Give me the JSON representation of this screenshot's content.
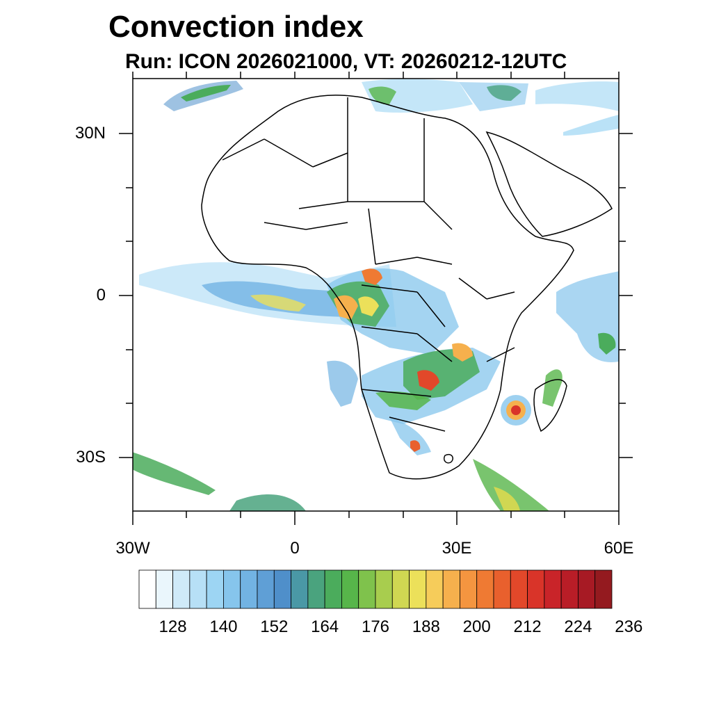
{
  "title": "Convection index",
  "subtitle": "Run: ICON 2026021000,  VT: 20260212-12UTC",
  "lat_labels": [
    "30N",
    "0",
    "30S"
  ],
  "lon_labels": [
    "30W",
    "0",
    "30E",
    "60E"
  ],
  "colorbar": {
    "labels": [
      "128",
      "140",
      "152",
      "164",
      "176",
      "188",
      "200",
      "212",
      "224",
      "236"
    ],
    "colors": [
      "#ffffff",
      "#eaf6fc",
      "#cfeaf8",
      "#b7e0f6",
      "#9dd5f3",
      "#86c5ec",
      "#72b3e3",
      "#5f9fd6",
      "#4f8fca",
      "#4a98a6",
      "#4aa37e",
      "#4bac5c",
      "#57b54a",
      "#7fc24c",
      "#a8cd4e",
      "#d0d752",
      "#ece05a",
      "#f6cc5a",
      "#f6b04d",
      "#f49540",
      "#ef7a33",
      "#e9602d",
      "#e2482a",
      "#d93429",
      "#c92429",
      "#b91d27",
      "#a71a24",
      "#941a1f"
    ]
  }
}
